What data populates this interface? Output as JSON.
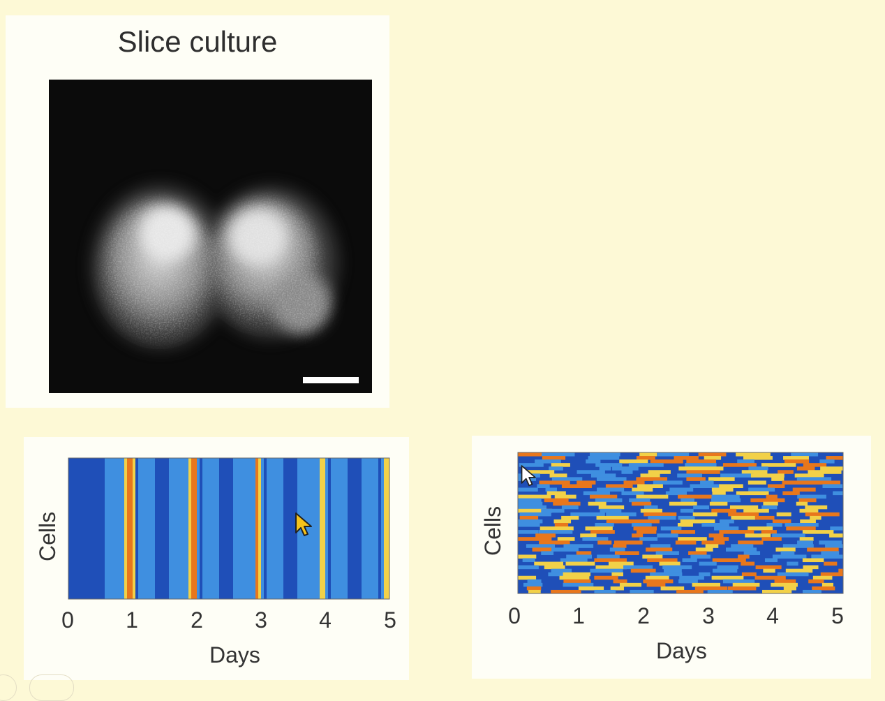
{
  "slide": {
    "background": "#fdf9d6",
    "slice_panel": {
      "title": "Slice culture"
    },
    "raster_left": {
      "ylabel": "Cells",
      "xlabel": "Days",
      "ticks": [
        "0",
        "1",
        "2",
        "3",
        "4",
        "5"
      ]
    },
    "raster_right": {
      "ylabel": "Cells",
      "xlabel": "Days",
      "ticks": [
        "0",
        "1",
        "2",
        "3",
        "4",
        "5"
      ]
    }
  },
  "chart_data": [
    {
      "type": "heatmap",
      "xlabel": "Days",
      "ylabel": "Cells",
      "xlim": [
        0,
        5
      ],
      "x_ticks": [
        0,
        1,
        2,
        3,
        4,
        5
      ],
      "pattern": "synchronized",
      "peak_days": [
        0.95,
        1.95,
        2.95,
        3.95,
        4.95
      ],
      "colors": [
        "#1f4fb8",
        "#3f8fe0",
        "#f2d148",
        "#e8771c"
      ]
    },
    {
      "type": "heatmap",
      "xlabel": "Days",
      "ylabel": "Cells",
      "xlim": [
        0,
        5
      ],
      "x_ticks": [
        0,
        1,
        2,
        3,
        4,
        5
      ],
      "pattern": "desynchronized",
      "colors": [
        "#1f4fb8",
        "#3f8fe0",
        "#f2d148",
        "#e8771c"
      ]
    }
  ]
}
